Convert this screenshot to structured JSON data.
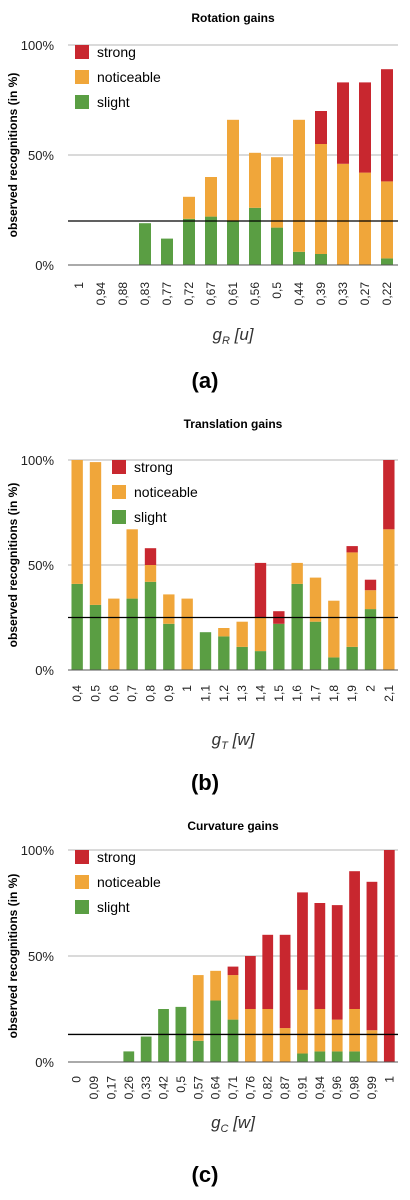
{
  "legend": {
    "strong": "strong",
    "noticeable": "noticeable",
    "slight": "slight"
  },
  "colors": {
    "strong": "#c8272f",
    "noticeable": "#f0a63a",
    "slight": "#5a9e43",
    "grid": "#b5b5b5",
    "axis": "#000000"
  },
  "chart_data": [
    {
      "type": "bar",
      "stacked": true,
      "title": "Rotation gains",
      "ylabel": "observed recognitions (in %)",
      "xlabel": {
        "symbol": "g",
        "sub": "R",
        "unit": "u"
      },
      "caption": "(a)",
      "ylim": [
        0,
        100
      ],
      "yticks": [
        "0%",
        "50%",
        "100%"
      ],
      "threshold": 20,
      "legend_position": "top-left",
      "grid": true,
      "categories": [
        "1",
        "0,94",
        "0,88",
        "0,83",
        "0,77",
        "0,72",
        "0,67",
        "0,61",
        "0,56",
        "0,5",
        "0,44",
        "0,39",
        "0,33",
        "0,27",
        "0,22"
      ],
      "series": [
        {
          "name": "slight",
          "values": [
            0,
            0,
            0,
            19,
            12,
            21,
            22,
            20,
            26,
            17,
            6,
            5,
            0,
            0,
            3
          ]
        },
        {
          "name": "noticeable",
          "values": [
            0,
            0,
            0,
            0,
            0,
            10,
            18,
            46,
            25,
            32,
            60,
            50,
            46,
            42,
            35
          ]
        },
        {
          "name": "strong",
          "values": [
            0,
            0,
            0,
            0,
            0,
            0,
            0,
            0,
            0,
            0,
            0,
            15,
            37,
            41,
            51
          ]
        }
      ]
    },
    {
      "type": "bar",
      "stacked": true,
      "title": "Translation gains",
      "ylabel": "observed recognitions (in %)",
      "xlabel": {
        "symbol": "g",
        "sub": "T",
        "unit": "w"
      },
      "caption": "(b)",
      "ylim": [
        0,
        100
      ],
      "yticks": [
        "0%",
        "50%",
        "100%"
      ],
      "threshold": 25,
      "legend_position": "top-center",
      "grid": true,
      "categories": [
        "0,4",
        "0,5",
        "0,6",
        "0,7",
        "0,8",
        "0,9",
        "1",
        "1,1",
        "1,2",
        "1,3",
        "1,4",
        "1,5",
        "1,6",
        "1,7",
        "1,8",
        "1,9",
        "2",
        "2,1"
      ],
      "series": [
        {
          "name": "slight",
          "values": [
            41,
            31,
            0,
            34,
            42,
            22,
            0,
            18,
            16,
            11,
            9,
            22,
            41,
            23,
            6,
            11,
            29,
            0
          ]
        },
        {
          "name": "noticeable",
          "values": [
            59,
            68,
            34,
            33,
            8,
            14,
            34,
            0,
            4,
            12,
            16,
            0,
            10,
            21,
            27,
            45,
            9,
            67
          ]
        },
        {
          "name": "strong",
          "values": [
            0,
            0,
            0,
            0,
            8,
            0,
            0,
            0,
            0,
            0,
            26,
            6,
            0,
            0,
            0,
            3,
            5,
            33
          ]
        }
      ]
    },
    {
      "type": "bar",
      "stacked": true,
      "title": "Curvature gains",
      "ylabel": "observed recognitions (in %)",
      "xlabel": {
        "symbol": "g",
        "sub": "C",
        "unit": "w"
      },
      "caption": "(c)",
      "ylim": [
        0,
        100
      ],
      "yticks": [
        "0%",
        "50%",
        "100%"
      ],
      "threshold": 13,
      "legend_position": "top-left",
      "grid": true,
      "categories": [
        "0",
        "0,09",
        "0,17",
        "0,26",
        "0,33",
        "0,42",
        "0,5",
        "0,57",
        "0,64",
        "0,71",
        "0,76",
        "0,82",
        "0,87",
        "0,91",
        "0,94",
        "0,96",
        "0,98",
        "0,99",
        "1"
      ],
      "series": [
        {
          "name": "slight",
          "values": [
            0,
            0,
            0,
            5,
            12,
            25,
            26,
            10,
            29,
            20,
            0,
            0,
            0,
            4,
            5,
            5,
            5,
            0,
            0
          ]
        },
        {
          "name": "noticeable",
          "values": [
            0,
            0,
            0,
            0,
            0,
            0,
            0,
            31,
            14,
            21,
            25,
            25,
            16,
            30,
            20,
            15,
            20,
            15,
            0
          ]
        },
        {
          "name": "strong",
          "values": [
            0,
            0,
            0,
            0,
            0,
            0,
            0,
            0,
            0,
            4,
            25,
            35,
            44,
            46,
            50,
            54,
            65,
            70,
            100
          ]
        }
      ]
    }
  ]
}
